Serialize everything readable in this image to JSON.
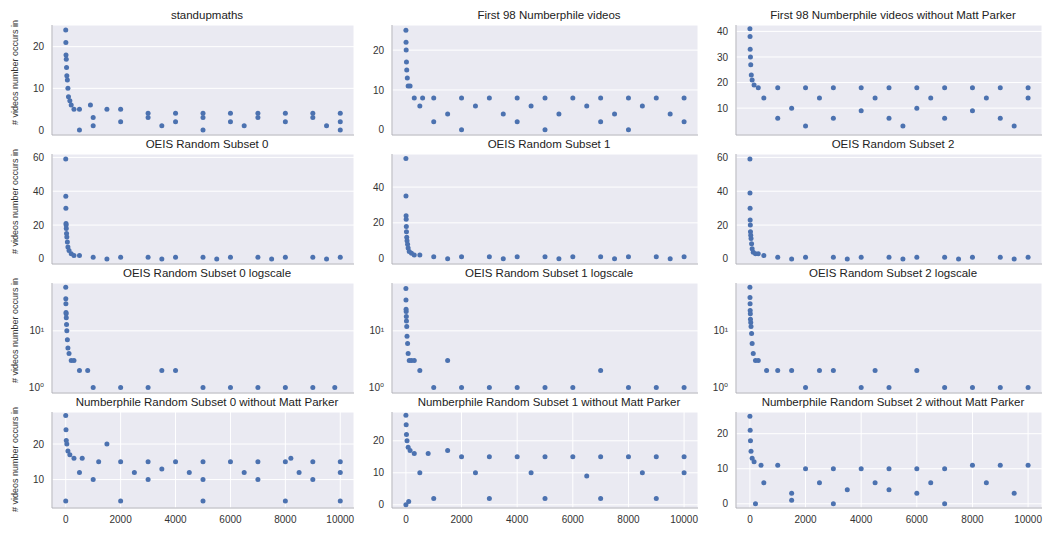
{
  "chart_data": [
    {
      "type": "scatter",
      "title": "standupmaths",
      "ylabel": "# videos number occurs in",
      "x": [
        0,
        5,
        10,
        20,
        30,
        40,
        60,
        80,
        100,
        150,
        200,
        300,
        500,
        900,
        1500,
        2000,
        3000,
        4000,
        5000,
        6000,
        7000,
        8000,
        9000,
        10000,
        1000,
        3000,
        5000,
        7000,
        9000,
        2000,
        4000,
        6000,
        8000,
        10000,
        1000,
        3500,
        6500,
        9500,
        500,
        5000,
        10000
      ],
      "values": [
        24,
        21,
        18,
        17,
        15,
        13,
        12,
        10,
        8,
        7,
        6,
        5,
        5,
        6,
        5,
        5,
        4,
        4,
        4,
        4,
        4,
        4,
        4,
        4,
        3,
        3,
        3,
        3,
        3,
        2,
        2,
        2,
        2,
        2,
        1,
        1,
        1,
        1,
        0,
        0,
        0
      ],
      "xlim": [
        -500,
        10500
      ],
      "xticks": [
        0,
        2000,
        4000,
        6000,
        8000,
        10000
      ],
      "ylim": [
        -1.2,
        25.2
      ],
      "yticks": [
        0,
        10,
        20
      ],
      "grid": true,
      "tick_labels": "y",
      "color": "#4C72B0",
      "marker": "circle"
    },
    {
      "type": "scatter",
      "title": "First 98 Numberphile videos",
      "x": [
        0,
        5,
        10,
        20,
        30,
        50,
        80,
        150,
        300,
        600,
        1000,
        2000,
        3000,
        4000,
        5000,
        6000,
        7000,
        8000,
        9000,
        10000,
        500,
        2500,
        4500,
        6500,
        8500,
        1500,
        3500,
        5500,
        7500,
        9500,
        1000,
        4000,
        7000,
        10000,
        2000,
        5000,
        8000
      ],
      "values": [
        25,
        22,
        20,
        17,
        15,
        13,
        11,
        11,
        8,
        8,
        8,
        8,
        8,
        8,
        8,
        8,
        8,
        8,
        8,
        8,
        6,
        6,
        6,
        6,
        6,
        4,
        4,
        4,
        4,
        4,
        2,
        2,
        2,
        2,
        0,
        0,
        0
      ],
      "xlim": [
        -500,
        10500
      ],
      "xticks": [
        0,
        2000,
        4000,
        6000,
        8000,
        10000
      ],
      "ylim": [
        -1.3,
        26.3
      ],
      "yticks": [
        0,
        10,
        20
      ],
      "grid": true,
      "tick_labels": "y",
      "color": "#4C72B0",
      "marker": "circle"
    },
    {
      "type": "scatter",
      "title": "First 98 Numberphile videos without Matt Parker",
      "x": [
        0,
        5,
        10,
        20,
        30,
        50,
        80,
        150,
        300,
        1000,
        2000,
        3000,
        4000,
        5000,
        6000,
        7000,
        8000,
        9000,
        10000,
        500,
        2500,
        4500,
        6500,
        8500,
        10000,
        1500,
        4000,
        6000,
        8000,
        1000,
        3000,
        5000,
        7000,
        9000,
        2000,
        5500,
        9500
      ],
      "values": [
        41,
        38,
        33,
        30,
        27,
        23,
        21,
        19,
        18,
        18,
        18,
        18,
        18,
        18,
        18,
        18,
        18,
        18,
        18,
        14,
        14,
        14,
        14,
        14,
        14,
        10,
        9,
        10,
        9,
        6,
        6,
        6,
        6,
        6,
        3,
        3,
        3
      ],
      "xlim": [
        -500,
        10500
      ],
      "xticks": [
        0,
        2000,
        4000,
        6000,
        8000,
        10000
      ],
      "ylim": [
        -0.5,
        42.5
      ],
      "yticks": [
        0,
        10,
        20,
        30,
        40
      ],
      "grid": true,
      "tick_labels": "y",
      "color": "#4C72B0",
      "marker": "circle"
    },
    {
      "type": "scatter",
      "title": "OEIS Random Subset 0",
      "ylabel": "# videos number occurs in",
      "x": [
        0,
        3,
        6,
        10,
        15,
        20,
        30,
        40,
        60,
        80,
        120,
        200,
        300,
        500,
        1000,
        2000,
        3000,
        4000,
        5000,
        6000,
        7000,
        8000,
        9000,
        10000,
        1500,
        3500,
        5500,
        7500,
        9500
      ],
      "values": [
        59,
        37,
        30,
        21,
        20,
        18,
        15,
        13,
        10,
        7,
        5,
        3,
        2,
        2,
        1,
        1,
        1,
        1,
        1,
        1,
        1,
        1,
        1,
        1,
        0,
        0,
        0,
        0,
        0
      ],
      "xlim": [
        -500,
        10500
      ],
      "xticks": [
        0,
        2000,
        4000,
        6000,
        8000,
        10000
      ],
      "ylim": [
        -3,
        62
      ],
      "yticks": [
        0,
        20,
        40,
        60
      ],
      "grid": true,
      "tick_labels": "y",
      "color": "#4C72B0",
      "marker": "circle"
    },
    {
      "type": "scatter",
      "title": "OEIS Random Subset 1",
      "x": [
        0,
        3,
        6,
        10,
        15,
        20,
        30,
        40,
        60,
        80,
        120,
        200,
        300,
        500,
        1000,
        2000,
        3000,
        4000,
        5000,
        6000,
        7000,
        8000,
        9000,
        10000,
        1500,
        3500,
        5500,
        7500,
        9500
      ],
      "values": [
        56,
        35,
        24,
        22,
        18,
        15,
        12,
        10,
        8,
        6,
        4,
        3,
        2,
        2,
        1,
        1,
        1,
        1,
        1,
        1,
        1,
        1,
        1,
        1,
        0,
        0,
        0,
        0,
        0
      ],
      "xlim": [
        -500,
        10500
      ],
      "xticks": [
        0,
        2000,
        4000,
        6000,
        8000,
        10000
      ],
      "ylim": [
        -3,
        58.5
      ],
      "yticks": [
        0,
        20,
        40
      ],
      "grid": true,
      "tick_labels": "y",
      "color": "#4C72B0",
      "marker": "circle"
    },
    {
      "type": "scatter",
      "title": "OEIS Random Subset 2",
      "x": [
        0,
        3,
        6,
        10,
        15,
        20,
        30,
        40,
        60,
        80,
        120,
        200,
        300,
        500,
        1000,
        2000,
        3000,
        4000,
        5000,
        6000,
        7000,
        8000,
        9000,
        10000,
        1500,
        3500,
        5500,
        7500,
        9500
      ],
      "values": [
        59,
        39,
        30,
        23,
        20,
        16,
        14,
        12,
        9,
        6,
        4,
        3,
        3,
        2,
        1,
        1,
        1,
        1,
        1,
        1,
        1,
        1,
        1,
        1,
        0,
        0,
        0,
        0,
        0
      ],
      "xlim": [
        -500,
        10500
      ],
      "xticks": [
        0,
        2000,
        4000,
        6000,
        8000,
        10000
      ],
      "ylim": [
        -3,
        62
      ],
      "yticks": [
        0,
        20,
        40,
        60
      ],
      "grid": true,
      "tick_labels": "y",
      "color": "#4C72B0",
      "marker": "circle"
    },
    {
      "type": "scatter",
      "title": "OEIS Random Subset 0 logscale",
      "ylabel": "# videos number occurs in",
      "x": [
        0,
        3,
        6,
        10,
        15,
        20,
        30,
        40,
        60,
        80,
        120,
        200,
        300,
        500,
        800,
        3500,
        4000,
        1000,
        2000,
        3000,
        5000,
        6000,
        7000,
        8000,
        9000,
        9800
      ],
      "values": [
        59,
        37,
        30,
        21,
        20,
        17,
        13,
        10,
        7,
        5,
        4,
        3,
        3,
        2,
        2,
        2,
        2,
        1,
        1,
        1,
        1,
        1,
        1,
        1,
        1,
        1
      ],
      "xlim": [
        -500,
        10500
      ],
      "xticks": [
        0,
        2000,
        4000,
        6000,
        8000,
        10000
      ],
      "ylim": [
        0.8,
        70
      ],
      "yticks": [
        {
          "value": 1,
          "label": "10⁰"
        },
        {
          "value": 10,
          "label": "10¹"
        }
      ],
      "log": "y",
      "grid": true,
      "tick_labels": "y",
      "color": "#4C72B0",
      "marker": "circle"
    },
    {
      "type": "scatter",
      "title": "OEIS Random Subset 1 logscale",
      "x": [
        0,
        3,
        6,
        10,
        15,
        20,
        30,
        40,
        60,
        80,
        120,
        200,
        300,
        500,
        1500,
        7000,
        1000,
        2000,
        3000,
        4000,
        5000,
        6000,
        8000,
        9000,
        10000
      ],
      "values": [
        56,
        35,
        24,
        22,
        18,
        15,
        12,
        8,
        6,
        4,
        3,
        3,
        3,
        2,
        3,
        2,
        1,
        1,
        1,
        1,
        1,
        1,
        1,
        1,
        1
      ],
      "xlim": [
        -500,
        10500
      ],
      "xticks": [
        0,
        2000,
        4000,
        6000,
        8000,
        10000
      ],
      "ylim": [
        0.8,
        70
      ],
      "yticks": [
        {
          "value": 1,
          "label": "10⁰"
        },
        {
          "value": 10,
          "label": "10¹"
        }
      ],
      "log": "y",
      "grid": true,
      "tick_labels": "y",
      "color": "#4C72B0",
      "marker": "circle"
    },
    {
      "type": "scatter",
      "title": "OEIS Random Subset 2 logscale",
      "x": [
        0,
        3,
        6,
        10,
        15,
        20,
        30,
        40,
        60,
        80,
        120,
        200,
        300,
        600,
        1000,
        1500,
        2500,
        3000,
        4500,
        6000,
        2000,
        4000,
        5000,
        7000,
        8000,
        9000,
        10000
      ],
      "values": [
        59,
        39,
        30,
        23,
        20,
        16,
        14,
        12,
        9,
        6,
        4,
        3,
        3,
        2,
        2,
        2,
        2,
        2,
        2,
        2,
        1,
        1,
        1,
        1,
        1,
        1,
        1
      ],
      "xlim": [
        -500,
        10500
      ],
      "xticks": [
        0,
        2000,
        4000,
        6000,
        8000,
        10000
      ],
      "ylim": [
        0.8,
        70
      ],
      "yticks": [
        {
          "value": 1,
          "label": "10⁰"
        },
        {
          "value": 10,
          "label": "10¹"
        }
      ],
      "log": "y",
      "grid": true,
      "tick_labels": "y",
      "color": "#4C72B0",
      "marker": "circle"
    },
    {
      "type": "scatter",
      "title": "Numberphile Random Subset 0 without Matt Parker",
      "ylabel": "# videos number occurs in",
      "x": [
        0,
        10,
        20,
        40,
        80,
        150,
        300,
        600,
        1200,
        1500,
        2000,
        3000,
        4000,
        5000,
        6000,
        7000,
        8000,
        9000,
        10000,
        500,
        2500,
        4500,
        6500,
        8500,
        10000,
        1000,
        3000,
        5000,
        7000,
        9000,
        0,
        2000,
        5000,
        8000,
        10000,
        3500,
        8200
      ],
      "values": [
        28,
        24,
        21,
        20,
        18,
        17,
        16,
        16,
        15,
        20,
        15,
        15,
        15,
        15,
        15,
        15,
        15,
        15,
        15,
        12,
        12,
        12,
        12,
        12,
        12,
        10,
        10,
        10,
        10,
        10,
        4,
        4,
        4,
        4,
        4,
        13,
        16
      ],
      "xlim": [
        -500,
        10500
      ],
      "xticks": [
        0,
        2000,
        4000,
        6000,
        8000,
        10000
      ],
      "ylim": [
        2,
        29
      ],
      "yticks": [
        10,
        20
      ],
      "grid": true,
      "color": "#4C72B0",
      "marker": "circle"
    },
    {
      "type": "scatter",
      "title": "Numberphile Random Subset 1 without Matt Parker",
      "x": [
        0,
        10,
        20,
        40,
        80,
        150,
        300,
        800,
        1500,
        2000,
        3000,
        4000,
        5000,
        6000,
        7000,
        8000,
        9000,
        10000,
        500,
        2500,
        4500,
        6500,
        8500,
        10000,
        1000,
        3000,
        5000,
        7000,
        9000,
        0,
        100
      ],
      "values": [
        28,
        25,
        22,
        20,
        18,
        17,
        16,
        16,
        17,
        15,
        15,
        15,
        15,
        15,
        15,
        15,
        15,
        15,
        10,
        10,
        10,
        9,
        10,
        10,
        2,
        2,
        2,
        2,
        2,
        0,
        1
      ],
      "xlim": [
        -500,
        10500
      ],
      "xticks": [
        0,
        2000,
        4000,
        6000,
        8000,
        10000
      ],
      "ylim": [
        -1,
        29
      ],
      "yticks": [
        0,
        10,
        20
      ],
      "grid": true,
      "color": "#4C72B0",
      "marker": "circle"
    },
    {
      "type": "scatter",
      "title": "Numberphile Random Subset 2 without Matt Parker",
      "x": [
        0,
        10,
        20,
        40,
        80,
        150,
        400,
        1000,
        2000,
        3000,
        4000,
        5000,
        6000,
        7000,
        8000,
        9000,
        10000,
        500,
        2500,
        4500,
        6500,
        8500,
        3500,
        5000,
        1500,
        6000,
        9500,
        200,
        3000,
        7000,
        1500
      ],
      "values": [
        25,
        21,
        18,
        15,
        13,
        12,
        11,
        11,
        10,
        10,
        10,
        10,
        10,
        10,
        11,
        11,
        11,
        6,
        6,
        6,
        6,
        6,
        4,
        4,
        3,
        3,
        3,
        0,
        0,
        0,
        1
      ],
      "xlim": [
        -500,
        10500
      ],
      "xticks": [
        0,
        2000,
        4000,
        6000,
        8000,
        10000
      ],
      "ylim": [
        -1.2,
        26.2
      ],
      "yticks": [
        0,
        10,
        20
      ],
      "grid": true,
      "color": "#4C72B0",
      "marker": "circle"
    }
  ]
}
